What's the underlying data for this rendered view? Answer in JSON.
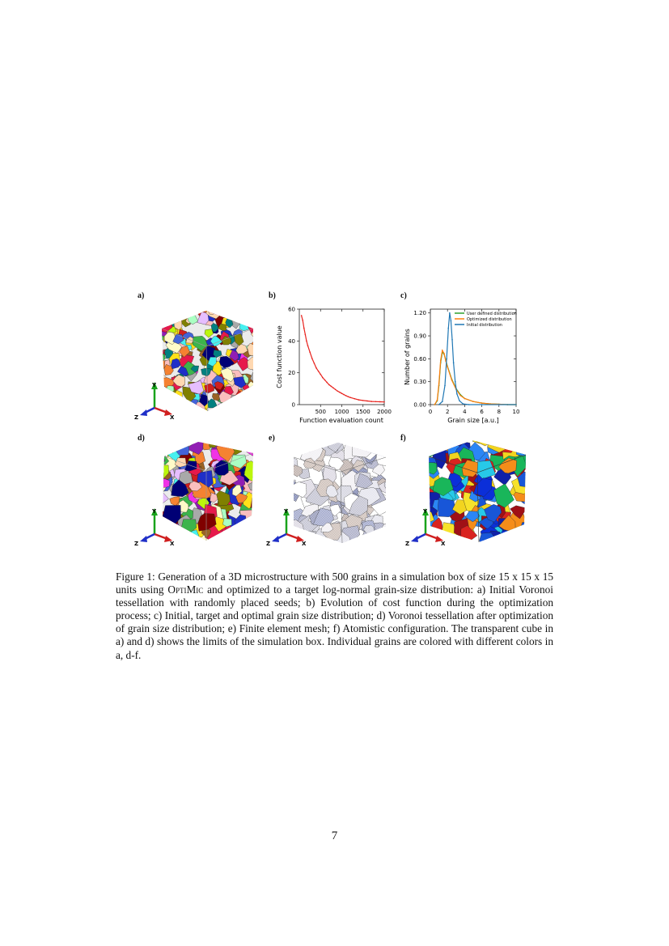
{
  "panels": {
    "a": "a)",
    "b": "b)",
    "c": "c)",
    "d": "d)",
    "e": "e)",
    "f": "f)"
  },
  "axis_triad": {
    "x": "X",
    "y": "Y",
    "z": "Z"
  },
  "chart_data": [
    {
      "panel": "b",
      "type": "line",
      "xlabel": "Function evaluation count",
      "ylabel": "Cost function value",
      "xlim": [
        0,
        2000
      ],
      "ylim": [
        0,
        60
      ],
      "xticks": [
        500,
        1000,
        1500,
        2000
      ],
      "yticks": [
        0,
        20,
        40,
        60
      ],
      "series": [
        {
          "color": "#e8231e",
          "x": [
            50,
            80,
            110,
            140,
            170,
            200,
            250,
            300,
            350,
            400,
            450,
            500,
            550,
            600,
            650,
            700,
            750,
            800,
            850,
            900,
            950,
            1000,
            1050,
            1100,
            1150,
            1200,
            1300,
            1400,
            1500,
            1600,
            1700,
            1800,
            1900,
            2000
          ],
          "y": [
            56,
            53,
            48,
            44,
            40,
            37,
            33,
            29,
            26,
            23,
            21,
            19,
            17,
            15.5,
            14,
            12.5,
            11.5,
            10.5,
            9.5,
            8.5,
            7.8,
            7,
            6.3,
            5.6,
            5,
            4.5,
            3.7,
            3,
            2.6,
            2.3,
            2,
            1.9,
            1.8,
            1.7
          ]
        }
      ]
    },
    {
      "panel": "c",
      "type": "line",
      "xlabel": "Grain size [a.u.]",
      "ylabel": "Number of grains",
      "xlim": [
        0,
        10
      ],
      "ylim": [
        0,
        1.25
      ],
      "xticks": [
        0,
        2,
        4,
        6,
        8,
        10
      ],
      "xtick_labels": [
        "0",
        "2",
        "4",
        "6",
        "8",
        "10"
      ],
      "yticks": [
        0,
        0.3,
        0.6,
        0.9,
        1.2
      ],
      "ytick_labels": [
        "0.00",
        "0.30",
        "0.60",
        "0.90",
        "1.20"
      ],
      "legend_position": "top-right",
      "series": [
        {
          "name": "User defined distribution",
          "color": "#2ca02c",
          "x": [
            0.5,
            0.8,
            1.0,
            1.2,
            1.4,
            1.6,
            1.8,
            2.0,
            2.5,
            3.0,
            3.5,
            4.0,
            5.0,
            6.0,
            7.0,
            8.0,
            9.0,
            10.0
          ],
          "y": [
            0.0,
            0.05,
            0.25,
            0.55,
            0.69,
            0.66,
            0.58,
            0.5,
            0.33,
            0.21,
            0.13,
            0.08,
            0.04,
            0.02,
            0.01,
            0.005,
            0.0,
            0.0
          ]
        },
        {
          "name": "Optimized distribution",
          "color": "#ff7f0e",
          "x": [
            0.5,
            0.8,
            1.0,
            1.2,
            1.4,
            1.6,
            1.8,
            2.0,
            2.5,
            3.0,
            3.5,
            4.0,
            5.0,
            6.0,
            7.0,
            8.0,
            9.0,
            10.0
          ],
          "y": [
            0.0,
            0.06,
            0.28,
            0.58,
            0.71,
            0.67,
            0.57,
            0.49,
            0.32,
            0.2,
            0.12,
            0.08,
            0.04,
            0.02,
            0.01,
            0.005,
            0.0,
            0.0
          ]
        },
        {
          "name": "Initial distribution",
          "color": "#1f77b4",
          "x": [
            1.0,
            1.4,
            1.7,
            1.9,
            2.1,
            2.25,
            2.4,
            2.55,
            2.7,
            2.9,
            3.1,
            3.4,
            3.8,
            4.5,
            6.0,
            8.0,
            10.0
          ],
          "y": [
            0.0,
            0.04,
            0.25,
            0.6,
            1.0,
            1.2,
            1.1,
            0.85,
            0.55,
            0.3,
            0.14,
            0.05,
            0.01,
            0.0,
            0.0,
            0.0,
            0.0
          ]
        }
      ]
    }
  ],
  "caption": {
    "lead": "Figure 1: Generation of a 3D microstructure with 500 grains in a simulation box of size 15 x 15 x 15 units using ",
    "software": "OptiMic",
    "rest": " and optimized to a target log-normal grain-size distribution: a) Initial Voronoi tessellation with randomly placed seeds; b) Evolution of cost function during the optimization process; c) Initial, target and optimal grain size distribution; d) Voronoi tessellation after optimization of grain size distribution; e) Finite element mesh; f) Atomistic configuration. The transparent cube in a) and d) shows the limits of the simulation box. Individual grains are colored with different colors in a, d-f."
  },
  "page_number": "7"
}
